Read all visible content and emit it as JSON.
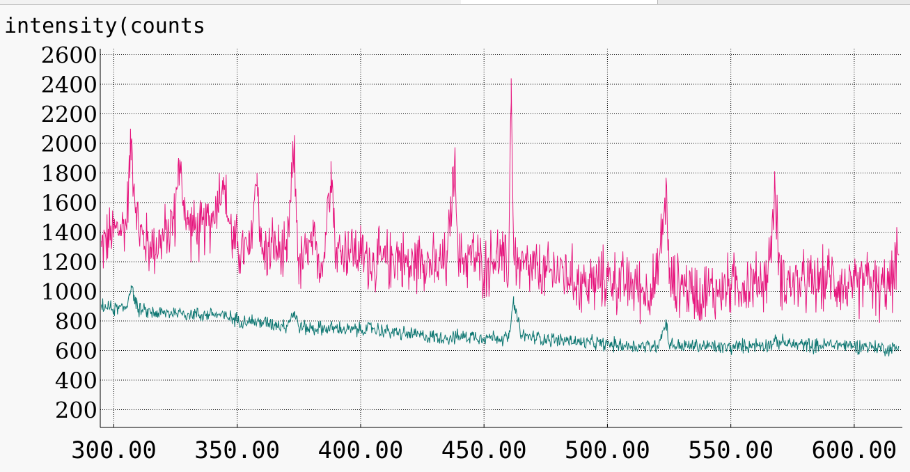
{
  "chart_data": {
    "type": "line",
    "title": "",
    "ylabel": "intensity(counts",
    "xlabel": "",
    "xlim": [
      294.5,
      619.5
    ],
    "ylim": [
      80,
      2640
    ],
    "x_ticks": [
      300,
      350,
      400,
      450,
      500,
      550,
      600
    ],
    "x_tick_labels": [
      "300.00",
      "350.00",
      "400.00",
      "450.00",
      "500.00",
      "550.00",
      "600.00"
    ],
    "y_ticks": [
      200,
      400,
      600,
      800,
      1000,
      1200,
      1400,
      1600,
      1800,
      2000,
      2200,
      2400,
      2600
    ],
    "y_tick_labels": [
      "200",
      "400",
      "600",
      "800",
      "1000",
      "1200",
      "1400",
      "1600",
      "1800",
      "2000",
      "2200",
      "2400",
      "2600"
    ],
    "grid": true,
    "series": [
      {
        "color": "#e6157d",
        "x": [
          295,
          300,
          305,
          307,
          310,
          315,
          320,
          325,
          326,
          330,
          335,
          340,
          344,
          348,
          350,
          355,
          358,
          360,
          365,
          370,
          373,
          375,
          380,
          385,
          388,
          390,
          395,
          400,
          405,
          410,
          415,
          420,
          425,
          430,
          435,
          438,
          440,
          445,
          450,
          455,
          460,
          461,
          462,
          465,
          470,
          475,
          480,
          485,
          490,
          495,
          500,
          505,
          510,
          515,
          520,
          524,
          525,
          530,
          535,
          540,
          545,
          550,
          555,
          560,
          565,
          568,
          570,
          575,
          580,
          585,
          590,
          595,
          600,
          605,
          610,
          615,
          618
        ],
        "values": [
          1300,
          1400,
          1450,
          2000,
          1400,
          1300,
          1350,
          1500,
          1850,
          1450,
          1400,
          1500,
          1750,
          1350,
          1300,
          1250,
          1800,
          1250,
          1300,
          1200,
          1950,
          1150,
          1300,
          1200,
          1880,
          1250,
          1300,
          1250,
          1200,
          1200,
          1250,
          1150,
          1250,
          1150,
          1200,
          1860,
          1200,
          1250,
          1150,
          1250,
          1150,
          2440,
          1250,
          1150,
          1150,
          1100,
          1150,
          1100,
          1050,
          1050,
          1100,
          1050,
          1050,
          1000,
          1050,
          1700,
          1050,
          1050,
          1000,
          1000,
          1000,
          1050,
          1050,
          1050,
          1100,
          1650,
          1100,
          1050,
          1050,
          1050,
          1100,
          1050,
          1000,
          1100,
          1000,
          1050,
          1250
        ]
      },
      {
        "color": "#0b7570",
        "x": [
          295,
          300,
          305,
          307,
          310,
          315,
          320,
          325,
          330,
          335,
          340,
          345,
          350,
          355,
          360,
          365,
          370,
          373,
          375,
          380,
          385,
          390,
          395,
          400,
          405,
          410,
          415,
          420,
          425,
          430,
          435,
          440,
          445,
          450,
          455,
          460,
          462,
          465,
          470,
          475,
          480,
          485,
          490,
          495,
          500,
          505,
          510,
          515,
          520,
          524,
          525,
          530,
          535,
          540,
          545,
          550,
          555,
          560,
          565,
          570,
          575,
          580,
          585,
          590,
          595,
          600,
          605,
          610,
          615,
          618
        ],
        "values": [
          900,
          880,
          890,
          1040,
          870,
          860,
          850,
          860,
          850,
          840,
          850,
          830,
          810,
          800,
          790,
          780,
          770,
          860,
          760,
          750,
          750,
          750,
          740,
          740,
          750,
          730,
          720,
          710,
          700,
          690,
          690,
          690,
          700,
          690,
          690,
          680,
          930,
          700,
          690,
          680,
          670,
          670,
          650,
          650,
          640,
          640,
          630,
          630,
          630,
          790,
          640,
          630,
          630,
          630,
          620,
          620,
          630,
          640,
          640,
          660,
          640,
          640,
          630,
          640,
          640,
          630,
          630,
          620,
          610,
          620
        ]
      }
    ]
  }
}
